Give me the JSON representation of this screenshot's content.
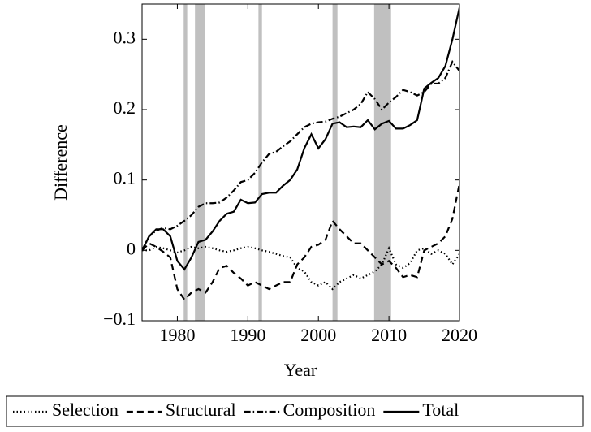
{
  "chart_data": {
    "type": "line",
    "xlabel": "Year",
    "ylabel": "Difference",
    "x": [
      1975,
      1976,
      1977,
      1978,
      1979,
      1980,
      1981,
      1982,
      1983,
      1984,
      1985,
      1986,
      1987,
      1988,
      1989,
      1990,
      1991,
      1992,
      1993,
      1994,
      1995,
      1996,
      1997,
      1998,
      1999,
      2000,
      2001,
      2002,
      2003,
      2004,
      2005,
      2006,
      2007,
      2008,
      2009,
      2010,
      2011,
      2012,
      2013,
      2014,
      2015,
      2016,
      2017,
      2018,
      2019,
      2020
    ],
    "series": [
      {
        "name": "Selection",
        "color": "#000000",
        "dash": "dotted",
        "values": [
          0,
          0,
          0.005,
          0.003,
          0,
          -0.003,
          0,
          0.005,
          0.003,
          0.005,
          0.003,
          0,
          -0.002,
          0,
          0.003,
          0.005,
          0.003,
          0,
          -0.002,
          -0.005,
          -0.008,
          -0.01,
          -0.025,
          -0.03,
          -0.045,
          -0.05,
          -0.045,
          -0.055,
          -0.045,
          -0.04,
          -0.035,
          -0.04,
          -0.035,
          -0.03,
          -0.02,
          0.003,
          -0.02,
          -0.025,
          -0.018,
          0,
          0.003,
          -0.005,
          0,
          -0.005,
          -0.02,
          -0.005
        ]
      },
      {
        "name": "Structural",
        "color": "#000000",
        "dash": "dashed",
        "values": [
          0,
          0.01,
          0.005,
          -0.002,
          -0.01,
          -0.055,
          -0.07,
          -0.06,
          -0.055,
          -0.06,
          -0.045,
          -0.025,
          -0.022,
          -0.032,
          -0.04,
          -0.05,
          -0.045,
          -0.05,
          -0.055,
          -0.05,
          -0.045,
          -0.045,
          -0.02,
          -0.01,
          0.005,
          0.008,
          0.015,
          0.042,
          0.03,
          0.02,
          0.01,
          0.01,
          0,
          -0.01,
          -0.02,
          -0.015,
          -0.025,
          -0.038,
          -0.035,
          -0.038,
          0,
          0.005,
          0.01,
          0.02,
          0.045,
          0.095
        ]
      },
      {
        "name": "Composition",
        "color": "#000000",
        "dash": "dashdot",
        "values": [
          0,
          0.02,
          0.028,
          0.032,
          0.03,
          0.035,
          0.042,
          0.05,
          0.062,
          0.067,
          0.067,
          0.068,
          0.075,
          0.085,
          0.097,
          0.1,
          0.11,
          0.125,
          0.137,
          0.14,
          0.148,
          0.155,
          0.165,
          0.175,
          0.18,
          0.182,
          0.183,
          0.187,
          0.19,
          0.195,
          0.2,
          0.208,
          0.225,
          0.215,
          0.2,
          0.21,
          0.218,
          0.228,
          0.225,
          0.22,
          0.225,
          0.237,
          0.237,
          0.245,
          0.268,
          0.255
        ]
      },
      {
        "name": "Total",
        "color": "#000000",
        "dash": "solid",
        "values": [
          0,
          0.02,
          0.03,
          0.03,
          0.02,
          -0.015,
          -0.027,
          -0.01,
          0.012,
          0.015,
          0.027,
          0.042,
          0.052,
          0.055,
          0.072,
          0.067,
          0.068,
          0.08,
          0.082,
          0.082,
          0.092,
          0.1,
          0.115,
          0.145,
          0.165,
          0.145,
          0.158,
          0.18,
          0.182,
          0.175,
          0.176,
          0.175,
          0.185,
          0.172,
          0.18,
          0.184,
          0.173,
          0.173,
          0.178,
          0.185,
          0.23,
          0.238,
          0.245,
          0.262,
          0.3,
          0.345
        ]
      }
    ],
    "shaded_regions": [
      [
        1980.9,
        1981.4
      ],
      [
        1982.5,
        1983.9
      ],
      [
        1991.5,
        1992
      ],
      [
        2002,
        2002.7
      ],
      [
        2007.9,
        2010.3
      ]
    ],
    "shade_color": "#c0c0c0",
    "xlim": [
      1975,
      2020
    ],
    "xticks": [
      1980,
      1990,
      2000,
      2010,
      2020
    ],
    "ylim": [
      -0.1,
      0.35
    ],
    "yticks": [
      {
        "value": -0.1,
        "label": "−0.1"
      },
      0,
      0.1,
      0.2,
      0.3
    ],
    "legend": "bottom"
  }
}
